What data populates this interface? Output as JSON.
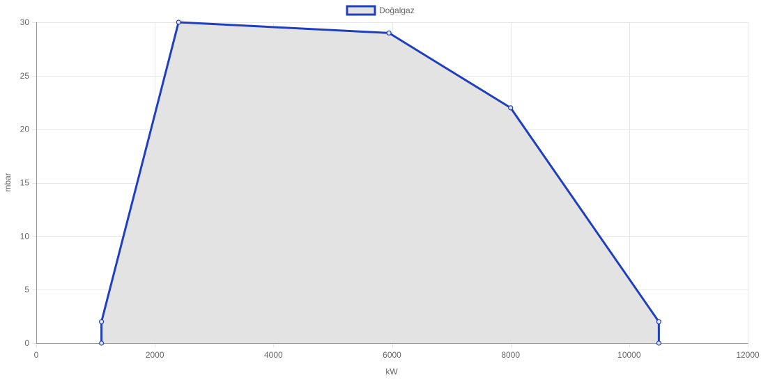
{
  "chart_data": {
    "type": "area",
    "xlabel": "kW",
    "ylabel": "mbar",
    "xlim": [
      0,
      12000
    ],
    "ylim": [
      0,
      30
    ],
    "x_ticks": [
      0,
      2000,
      4000,
      6000,
      8000,
      10000,
      12000
    ],
    "y_ticks": [
      0,
      5,
      10,
      15,
      20,
      25,
      30
    ],
    "grid": true,
    "legend_position": "top-center",
    "series": [
      {
        "name": "Doğalgaz",
        "line_color": "#1f3fbf",
        "fill_color": "#e3e3e4",
        "points": [
          {
            "x": 1100,
            "y": 0
          },
          {
            "x": 1100,
            "y": 2
          },
          {
            "x": 2400,
            "y": 30
          },
          {
            "x": 5950,
            "y": 29
          },
          {
            "x": 8000,
            "y": 22
          },
          {
            "x": 10500,
            "y": 2
          },
          {
            "x": 10500,
            "y": 0
          }
        ]
      }
    ]
  },
  "colors": {
    "grid": "#e6e6e6",
    "axis": "#999999",
    "text": "#666666"
  }
}
